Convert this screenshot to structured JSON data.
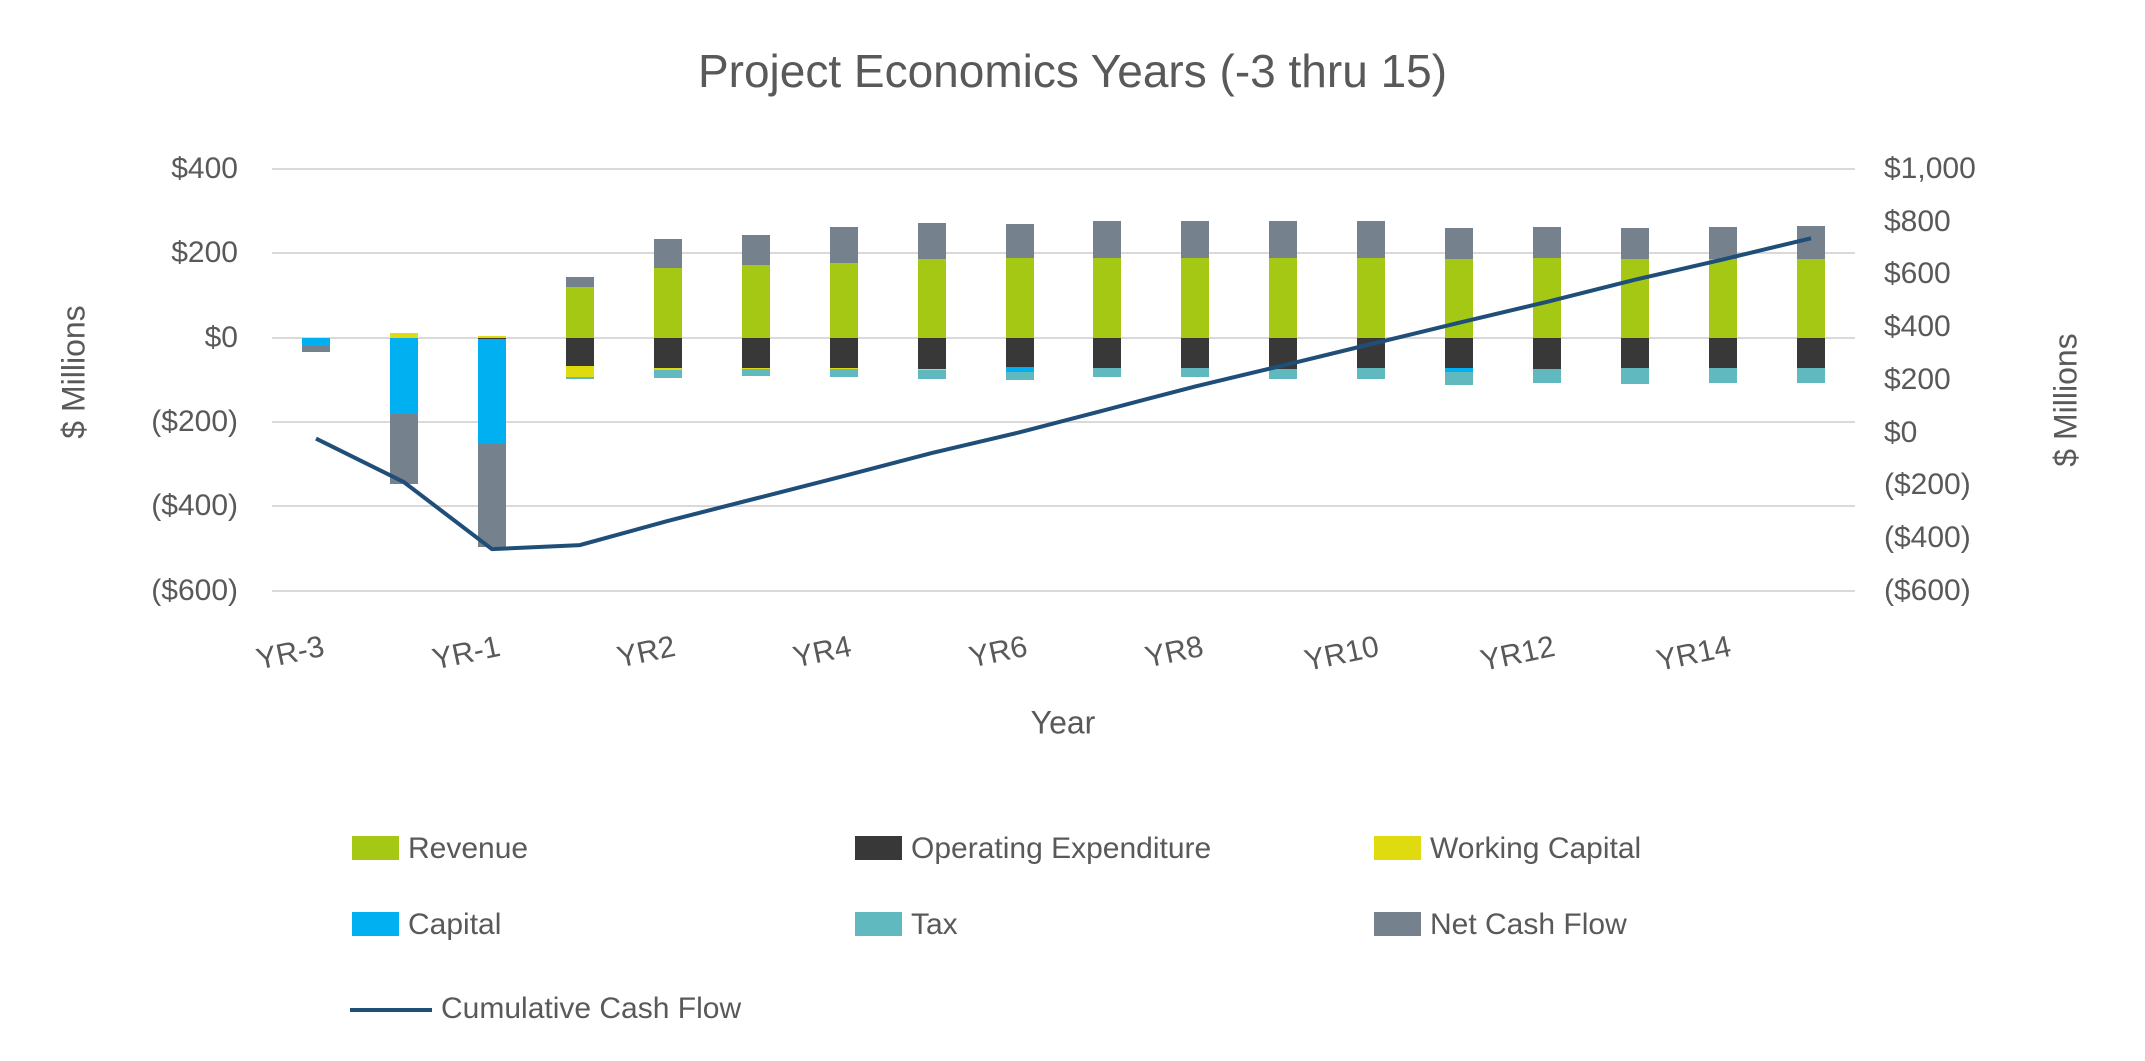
{
  "title": "Project Economics Years (-3 thru 15)",
  "x_axis_title": "Year",
  "left_axis_title": "$ Millions",
  "right_axis_title": "$ Millions",
  "chart_data": {
    "type": "bar",
    "subtype": "stacked-column-with-line",
    "grid": true,
    "legend_position": "bottom",
    "categories": [
      "YR-3",
      "YR-2",
      "YR-1",
      "YR1",
      "YR2",
      "YR3",
      "YR4",
      "YR5",
      "YR6",
      "YR7",
      "YR8",
      "YR9",
      "YR10",
      "YR11",
      "YR12",
      "YR13",
      "YR14",
      "YR15"
    ],
    "x_tick_labels": [
      "YR-3",
      "YR-1",
      "YR2",
      "YR4",
      "YR6",
      "YR8",
      "YR10",
      "YR12",
      "YR14"
    ],
    "x_tick_indices": [
      0,
      2,
      4,
      6,
      8,
      10,
      12,
      14,
      16
    ],
    "left_axis": {
      "title": "$ Millions",
      "range": [
        -600,
        400
      ],
      "tick_values": [
        400,
        200,
        0,
        -200,
        -400,
        -600
      ],
      "tick_labels": [
        "$400",
        "$200",
        "$0",
        "($200)",
        "($400)",
        "($600)"
      ]
    },
    "right_axis": {
      "title": "$ Millions",
      "range": [
        -600,
        1000
      ],
      "tick_values": [
        1000,
        800,
        600,
        400,
        200,
        0,
        -200,
        -400,
        -600
      ],
      "tick_labels": [
        "$1,000",
        "$800",
        "$600",
        "$400",
        "$200",
        "$0",
        "($200)",
        "($400)",
        "($600)"
      ]
    },
    "series": [
      {
        "name": "Revenue",
        "color": "#A4C813",
        "values": [
          0,
          0,
          0,
          120,
          166,
          172,
          178,
          186,
          190,
          190,
          190,
          190,
          190,
          186,
          190,
          186,
          186,
          186
        ]
      },
      {
        "name": "Operating Expenditure",
        "color": "#383838",
        "values": [
          0,
          0,
          -2,
          -68,
          -71,
          -72,
          -73,
          -74,
          -70,
          -71,
          -71,
          -74,
          -73,
          -71,
          -74,
          -71,
          -71,
          -71
        ]
      },
      {
        "name": "Working Capital",
        "color": "#E0DB10",
        "values": [
          0,
          12,
          5,
          -25,
          -6,
          -2,
          -2,
          -2,
          0,
          -2,
          0,
          0,
          0,
          0,
          0,
          0,
          0,
          0
        ]
      },
      {
        "name": "Capital",
        "color": "#00B0F0",
        "values": [
          -20,
          -180,
          -250,
          0,
          0,
          0,
          0,
          0,
          -12,
          0,
          0,
          0,
          0,
          -10,
          0,
          0,
          0,
          0
        ]
      },
      {
        "name": "Tax",
        "color": "#5FB9BF",
        "values": [
          0,
          0,
          0,
          -5,
          -18,
          -18,
          -19,
          -21,
          -18,
          -20,
          -23,
          -25,
          -26,
          -32,
          -33,
          -38,
          -36,
          -36
        ]
      },
      {
        "name": "Net Cash Flow",
        "color": "#76818E",
        "values": [
          -14,
          -168,
          -245,
          23,
          67,
          72,
          85,
          87,
          79,
          87,
          87,
          87,
          87,
          74,
          73,
          75,
          77,
          80
        ]
      }
    ],
    "line_series": {
      "name": "Cumulative Cash Flow",
      "color": "#1F4E79",
      "axis": "right",
      "values": [
        -23,
        -188,
        -442,
        -427,
        -335,
        -250,
        -165,
        -78,
        1,
        88,
        175,
        255,
        336,
        417,
        496,
        580,
        657,
        737
      ]
    },
    "colors": {
      "text": "#595959",
      "gridline": "#D9D9D9",
      "background": "#FFFFFF"
    }
  }
}
